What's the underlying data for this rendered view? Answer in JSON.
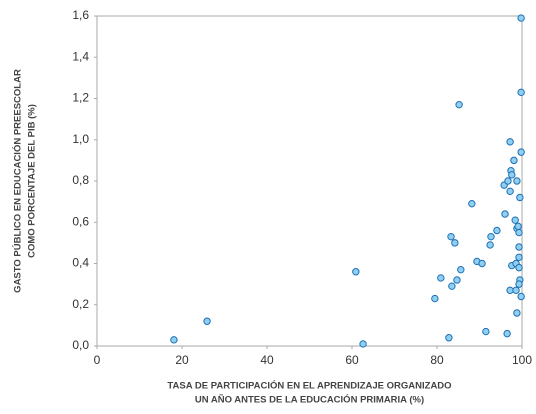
{
  "chart_data": {
    "type": "scatter",
    "xlabel": [
      "TASA DE PARTICIPACIÓN EN EL APRENDIZAJE ORGANIZADO",
      "UN AÑO ANTES DE LA EDUCACIÓN PRIMARIA (%)"
    ],
    "ylabel": [
      "GASTO PÚBLICO EN EDUCACIÓN PREESCOLAR",
      "COMO PORCENTAJE DEL PIB (%)"
    ],
    "xlim": [
      0,
      100
    ],
    "xticks": [
      0,
      20,
      40,
      60,
      80,
      100
    ],
    "ylim": [
      0,
      1.6
    ],
    "yticks": [
      {
        "value": 0,
        "label": "0,0"
      },
      {
        "value": 0.2,
        "label": "0,2"
      },
      {
        "value": 0.4,
        "label": "0,4"
      },
      {
        "value": 0.6,
        "label": "0,6"
      },
      {
        "value": 0.8,
        "label": "0,8"
      },
      {
        "value": 1.0,
        "label": "1,0"
      },
      {
        "value": 1.2,
        "label": "1,2"
      },
      {
        "value": 1.4,
        "label": "1,4"
      },
      {
        "value": 1.6,
        "label": "1,6"
      }
    ],
    "color": "#8fd0f0",
    "edge_color": "#1f6fb5",
    "grid": false,
    "x": [
      18.1,
      25.9,
      60.9,
      62.6,
      80.9,
      79.5,
      82.8,
      83.3,
      84.2,
      83.5,
      84.7,
      85.6,
      85.2,
      88.2,
      89.4,
      90.6,
      91.5,
      92.5,
      92.7,
      94.1,
      96,
      95.8,
      96.5,
      97.2,
      97.4,
      97.6,
      97.2,
      96.7,
      98.1,
      97.6,
      97.2,
      98.4,
      98.8,
      98.8,
      98.6,
      98.6,
      98.8,
      99.1,
      99.3,
      99.3,
      99.3,
      99.3,
      99.5,
      99.3,
      99.8,
      99.5,
      99.8,
      99.8,
      99.8
    ],
    "values": [
      0.03,
      0.12,
      0.36,
      0.01,
      0.33,
      0.23,
      0.04,
      0.53,
      0.5,
      0.29,
      0.32,
      0.37,
      1.17,
      0.69,
      0.41,
      0.4,
      0.07,
      0.49,
      0.53,
      0.56,
      0.64,
      0.78,
      0.06,
      0.99,
      0.85,
      0.83,
      0.75,
      0.8,
      0.9,
      0.39,
      0.27,
      0.61,
      0.57,
      0.8,
      0.4,
      0.27,
      0.16,
      0.58,
      0.55,
      0.48,
      0.43,
      0.38,
      0.32,
      0.3,
      0.24,
      0.72,
      0.94,
      1.23,
      1.59
    ]
  }
}
